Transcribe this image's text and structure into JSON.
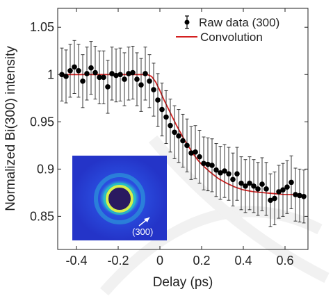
{
  "chart_data": {
    "type": "scatter",
    "xlabel": "Delay (ps)",
    "ylabel": "Normalized Bi(300) intensity",
    "xlim": [
      -0.49,
      0.71
    ],
    "ylim": [
      0.815,
      1.07
    ],
    "x_ticks": [
      "-0.4",
      "-0.2",
      "0",
      "0.2",
      "0.4",
      "0.6"
    ],
    "x_tick_values": [
      -0.4,
      -0.2,
      0,
      0.2,
      0.4,
      0.6
    ],
    "y_ticks": [
      "0.85",
      "0.9",
      "0.95",
      "1",
      "1.05"
    ],
    "y_tick_values": [
      0.85,
      0.9,
      0.95,
      1.0,
      1.05
    ],
    "legend_position": "top-right",
    "grid": false,
    "series": [
      {
        "name": "Raw data (300)",
        "kind": "errorbar-markers",
        "color": "#000000",
        "error": 0.028,
        "x": [
          -0.47,
          -0.45,
          -0.43,
          -0.41,
          -0.39,
          -0.37,
          -0.35,
          -0.33,
          -0.31,
          -0.29,
          -0.27,
          -0.25,
          -0.23,
          -0.21,
          -0.19,
          -0.17,
          -0.15,
          -0.13,
          -0.11,
          -0.09,
          -0.07,
          -0.05,
          -0.03,
          -0.01,
          0.01,
          0.03,
          0.05,
          0.07,
          0.09,
          0.11,
          0.13,
          0.15,
          0.17,
          0.19,
          0.21,
          0.23,
          0.25,
          0.27,
          0.29,
          0.31,
          0.33,
          0.35,
          0.37,
          0.39,
          0.41,
          0.43,
          0.45,
          0.47,
          0.49,
          0.51,
          0.53,
          0.55,
          0.57,
          0.59,
          0.61,
          0.63,
          0.65,
          0.67,
          0.69
        ],
        "y": [
          1.0,
          0.998,
          1.004,
          1.008,
          1.004,
          0.993,
          1.001,
          1.007,
          1.002,
          0.997,
          0.997,
          0.987,
          1.001,
          0.999,
          1.0,
          0.995,
          1.001,
          1.002,
          0.995,
          0.989,
          1.001,
          0.993,
          0.984,
          0.973,
          0.963,
          0.955,
          0.946,
          0.939,
          0.935,
          0.93,
          0.925,
          0.917,
          0.918,
          0.913,
          0.906,
          0.905,
          0.904,
          0.899,
          0.896,
          0.898,
          0.895,
          0.889,
          0.895,
          0.885,
          0.882,
          0.885,
          0.882,
          0.879,
          0.884,
          0.879,
          0.867,
          0.869,
          0.876,
          0.878,
          0.881,
          0.886,
          0.873,
          0.872,
          0.871
        ]
      },
      {
        "name": "Convolution",
        "kind": "line",
        "color": "#d42020",
        "x": [
          -0.48,
          -0.06,
          -0.04,
          -0.02,
          0.0,
          0.02,
          0.04,
          0.06,
          0.08,
          0.1,
          0.12,
          0.14,
          0.16,
          0.18,
          0.2,
          0.24,
          0.28,
          0.32,
          0.36,
          0.4,
          0.45,
          0.5,
          0.55,
          0.6,
          0.65,
          0.7
        ],
        "y": [
          1.0,
          1.0,
          0.998,
          0.992,
          0.983,
          0.973,
          0.964,
          0.955,
          0.946,
          0.938,
          0.93,
          0.923,
          0.916,
          0.91,
          0.905,
          0.897,
          0.89,
          0.885,
          0.881,
          0.878,
          0.876,
          0.875,
          0.874,
          0.873,
          0.873,
          0.872
        ]
      }
    ],
    "inset": {
      "kind": "diffraction-image",
      "label": "(300)",
      "colors": {
        "background": "#2a3ad8",
        "ring": "#d6f04a",
        "glow": "#1ec8c8",
        "core": "#2a1a60"
      }
    }
  },
  "legend": {
    "items": [
      "Raw data (300)",
      "Convolution"
    ]
  }
}
